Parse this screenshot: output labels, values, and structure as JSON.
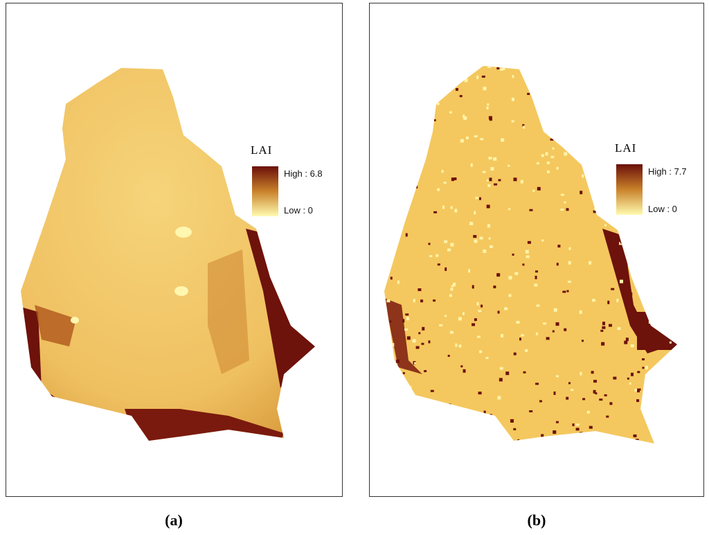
{
  "panels": [
    {
      "legend": {
        "title": "LAI",
        "high_label": "High : 6.8",
        "low_label": "Low : 0"
      },
      "caption": "(a)"
    },
    {
      "legend": {
        "title": "LAI",
        "high_label": "High : 7.7",
        "low_label": "Low : 0"
      },
      "caption": "(b)"
    }
  ]
}
